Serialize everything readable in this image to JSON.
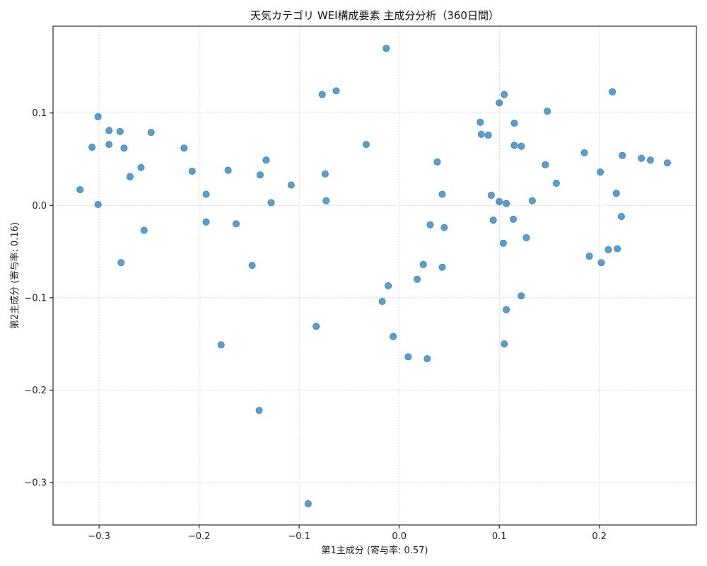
{
  "chart_data": {
    "type": "scatter",
    "title": "天気カテゴリ WEI構成要素 主成分分析（360日間）",
    "xlabel": "第1主成分 (寄与率: 0.57)",
    "ylabel": "第2主成分 (寄与率: 0.16)",
    "xlim": [
      -0.346,
      0.297
    ],
    "ylim": [
      -0.346,
      0.194
    ],
    "xticks": [
      -0.3,
      -0.2,
      -0.1,
      0.0,
      0.1,
      0.2
    ],
    "xtick_labels": [
      "−0.3",
      "−0.2",
      "−0.1",
      "0.0",
      "0.1",
      "0.2"
    ],
    "yticks": [
      -0.3,
      -0.2,
      -0.1,
      0.0,
      0.1
    ],
    "ytick_labels": [
      "−0.3",
      "−0.2",
      "−0.1",
      "0.0",
      "0.1"
    ],
    "grid": true,
    "color": "#1f77b4",
    "points": [
      [
        -0.013,
        0.17
      ],
      [
        -0.077,
        0.12
      ],
      [
        -0.063,
        0.124
      ],
      [
        0.213,
        0.123
      ],
      [
        0.105,
        0.12
      ],
      [
        -0.301,
        0.096
      ],
      [
        0.1,
        0.111
      ],
      [
        0.148,
        0.102
      ],
      [
        -0.29,
        0.081
      ],
      [
        -0.279,
        0.08
      ],
      [
        -0.248,
        0.079
      ],
      [
        0.081,
        0.09
      ],
      [
        0.115,
        0.089
      ],
      [
        0.082,
        0.077
      ],
      [
        0.089,
        0.076
      ],
      [
        -0.307,
        0.063
      ],
      [
        -0.29,
        0.066
      ],
      [
        -0.275,
        0.062
      ],
      [
        -0.215,
        0.062
      ],
      [
        -0.033,
        0.066
      ],
      [
        0.115,
        0.065
      ],
      [
        0.122,
        0.064
      ],
      [
        0.185,
        0.057
      ],
      [
        0.223,
        0.054
      ],
      [
        0.242,
        0.051
      ],
      [
        0.251,
        0.049
      ],
      [
        -0.133,
        0.049
      ],
      [
        0.038,
        0.047
      ],
      [
        0.146,
        0.044
      ],
      [
        0.268,
        0.046
      ],
      [
        -0.258,
        0.041
      ],
      [
        -0.207,
        0.037
      ],
      [
        -0.171,
        0.038
      ],
      [
        -0.269,
        0.031
      ],
      [
        -0.139,
        0.033
      ],
      [
        -0.074,
        0.034
      ],
      [
        0.201,
        0.036
      ],
      [
        -0.108,
        0.022
      ],
      [
        0.157,
        0.024
      ],
      [
        -0.319,
        0.017
      ],
      [
        -0.193,
        0.012
      ],
      [
        0.043,
        0.012
      ],
      [
        0.092,
        0.011
      ],
      [
        0.217,
        0.013
      ],
      [
        -0.073,
        0.005
      ],
      [
        -0.128,
        0.003
      ],
      [
        0.1,
        0.004
      ],
      [
        0.107,
        0.002
      ],
      [
        0.133,
        0.005
      ],
      [
        -0.301,
        0.001
      ],
      [
        -0.193,
        -0.018
      ],
      [
        -0.163,
        -0.02
      ],
      [
        -0.255,
        -0.027
      ],
      [
        0.094,
        -0.016
      ],
      [
        0.114,
        -0.015
      ],
      [
        0.031,
        -0.021
      ],
      [
        0.045,
        -0.024
      ],
      [
        0.222,
        -0.012
      ],
      [
        0.127,
        -0.035
      ],
      [
        0.104,
        -0.041
      ],
      [
        -0.278,
        -0.062
      ],
      [
        -0.147,
        -0.065
      ],
      [
        0.024,
        -0.064
      ],
      [
        0.043,
        -0.067
      ],
      [
        0.19,
        -0.055
      ],
      [
        0.209,
        -0.048
      ],
      [
        0.218,
        -0.047
      ],
      [
        0.202,
        -0.062
      ],
      [
        0.018,
        -0.08
      ],
      [
        -0.011,
        -0.087
      ],
      [
        -0.017,
        -0.104
      ],
      [
        0.122,
        -0.098
      ],
      [
        0.107,
        -0.113
      ],
      [
        -0.083,
        -0.131
      ],
      [
        -0.006,
        -0.142
      ],
      [
        -0.178,
        -0.151
      ],
      [
        0.105,
        -0.15
      ],
      [
        0.009,
        -0.164
      ],
      [
        0.028,
        -0.166
      ],
      [
        -0.14,
        -0.222
      ],
      [
        -0.091,
        -0.323
      ]
    ]
  }
}
